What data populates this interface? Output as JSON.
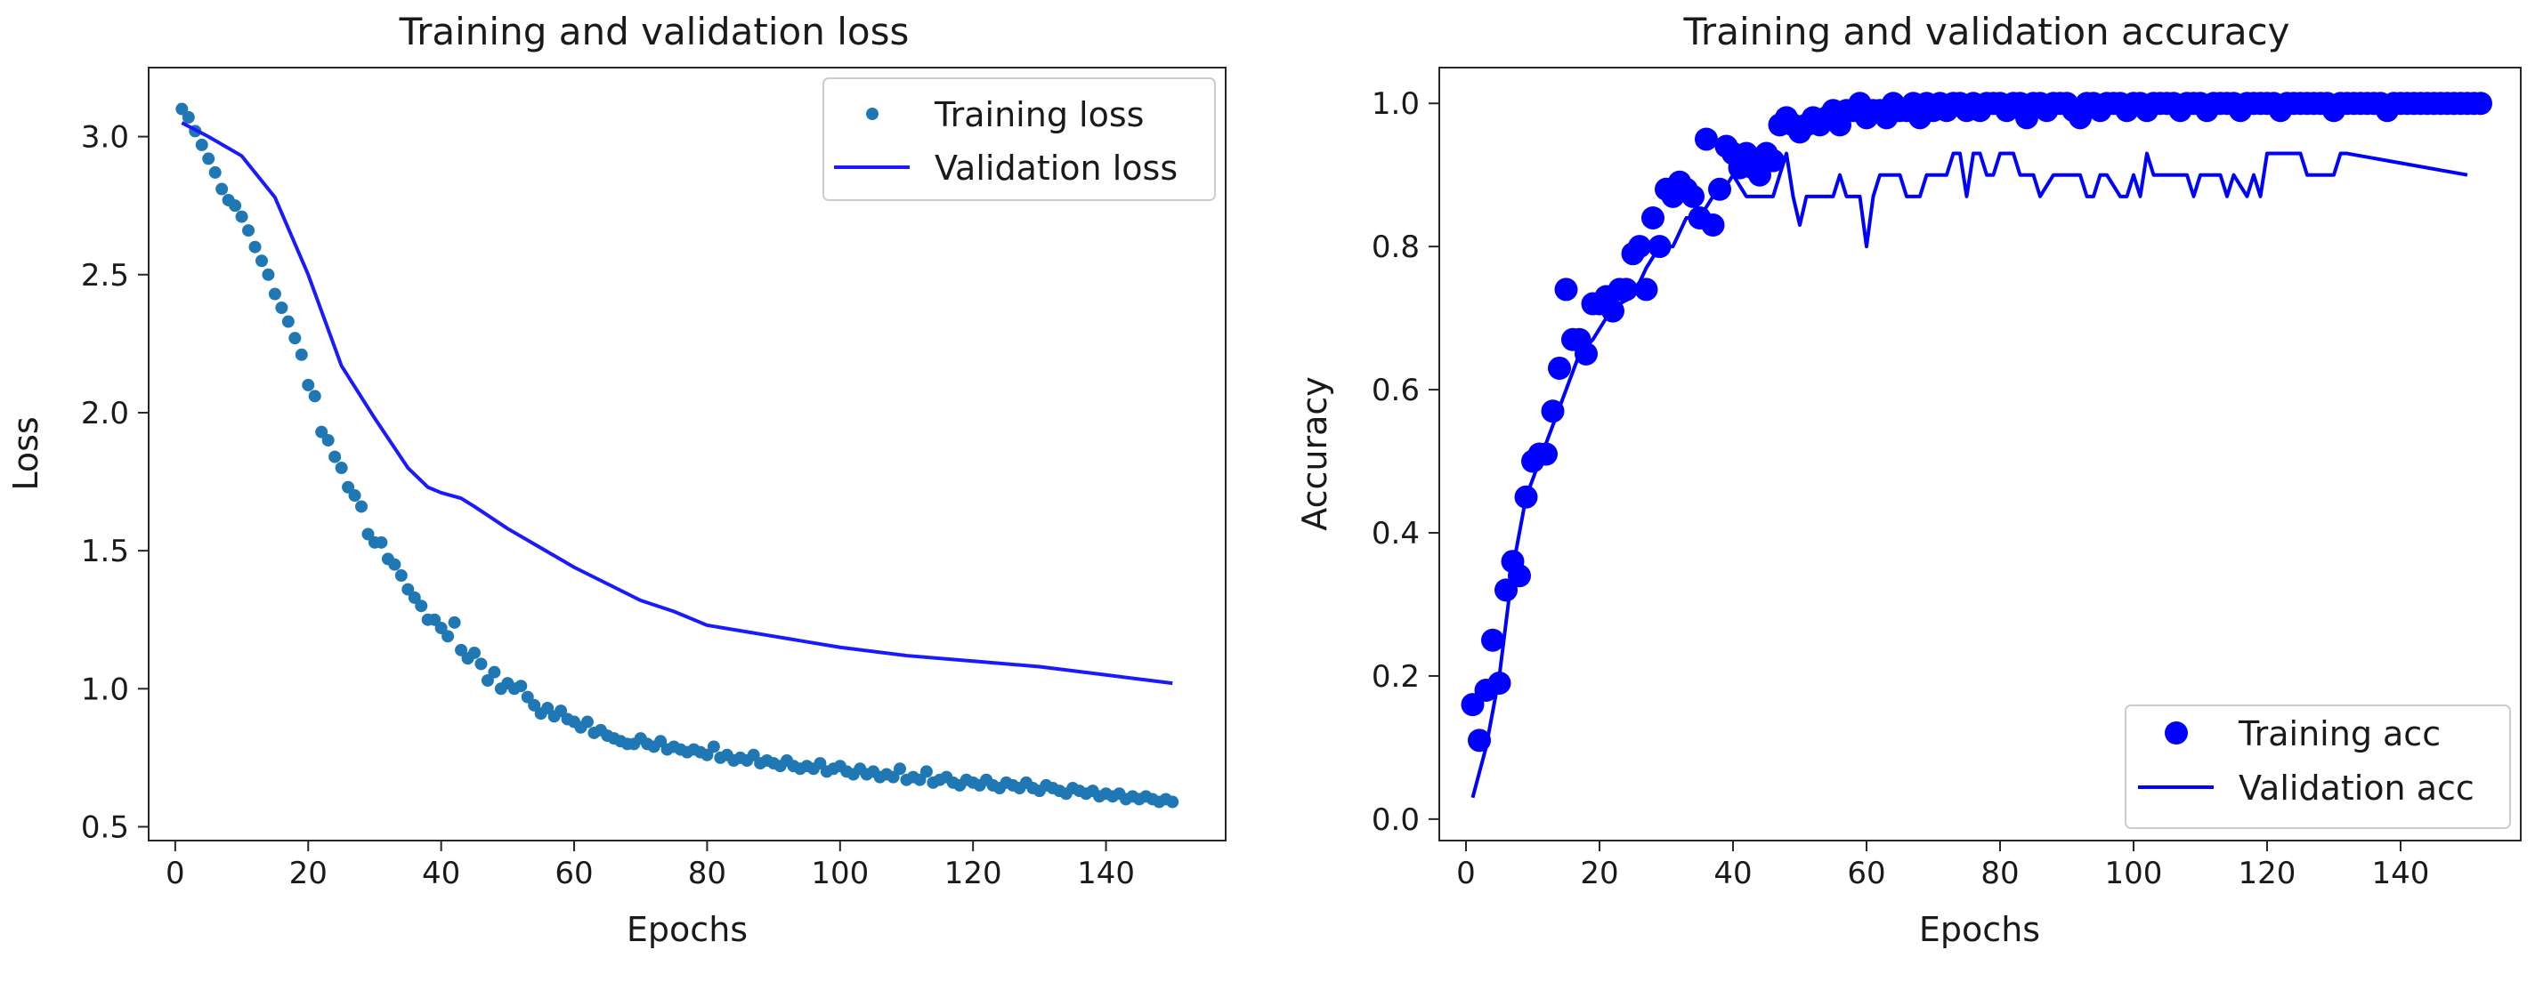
{
  "colors": {
    "training_loss": "#1f77b4",
    "validation_loss": "#1a1aff",
    "training_acc": "#0000ff",
    "validation_acc": "#0000ff",
    "axes": "#262626",
    "legend_border": "#cccccc"
  },
  "chart_data": [
    {
      "type": "scatter",
      "title": "Training and validation loss",
      "xlabel": "Epochs",
      "ylabel": "Loss",
      "xlim": [
        -4,
        158
      ],
      "ylim": [
        0.45,
        3.25
      ],
      "xticks": [
        0,
        20,
        40,
        60,
        80,
        100,
        120,
        140
      ],
      "xtick_labels": [
        "0",
        "20",
        "40",
        "60",
        "80",
        "100",
        "120",
        "140"
      ],
      "yticks": [
        0.5,
        1.0,
        1.5,
        2.0,
        2.5,
        3.0
      ],
      "ytick_labels": [
        "0.5",
        "1.0",
        "1.5",
        "2.0",
        "2.5",
        "3.0"
      ],
      "legend_position": "top-right",
      "series": [
        {
          "name": "Training loss",
          "kind": "points",
          "x_start": 1,
          "values": [
            3.1,
            3.07,
            3.02,
            2.97,
            2.92,
            2.87,
            2.81,
            2.77,
            2.75,
            2.71,
            2.66,
            2.6,
            2.55,
            2.5,
            2.43,
            2.38,
            2.33,
            2.27,
            2.21,
            2.1,
            2.06,
            1.93,
            1.9,
            1.84,
            1.8,
            1.73,
            1.7,
            1.66,
            1.56,
            1.53,
            1.53,
            1.47,
            1.45,
            1.41,
            1.36,
            1.33,
            1.3,
            1.25,
            1.25,
            1.22,
            1.19,
            1.24,
            1.14,
            1.11,
            1.13,
            1.09,
            1.03,
            1.06,
            1.0,
            1.02,
            1.0,
            1.01,
            0.97,
            0.94,
            0.91,
            0.93,
            0.9,
            0.92,
            0.89,
            0.88,
            0.86,
            0.88,
            0.84,
            0.85,
            0.83,
            0.82,
            0.81,
            0.8,
            0.8,
            0.82,
            0.8,
            0.79,
            0.81,
            0.78,
            0.79,
            0.78,
            0.77,
            0.78,
            0.77,
            0.76,
            0.79,
            0.75,
            0.76,
            0.74,
            0.75,
            0.74,
            0.76,
            0.73,
            0.74,
            0.73,
            0.72,
            0.74,
            0.72,
            0.71,
            0.72,
            0.71,
            0.73,
            0.7,
            0.71,
            0.72,
            0.7,
            0.69,
            0.71,
            0.69,
            0.7,
            0.68,
            0.69,
            0.68,
            0.71,
            0.67,
            0.68,
            0.67,
            0.7,
            0.66,
            0.67,
            0.68,
            0.66,
            0.65,
            0.67,
            0.66,
            0.65,
            0.67,
            0.65,
            0.64,
            0.66,
            0.65,
            0.64,
            0.66,
            0.64,
            0.63,
            0.65,
            0.64,
            0.63,
            0.62,
            0.64,
            0.63,
            0.62,
            0.63,
            0.61,
            0.62,
            0.61,
            0.62,
            0.6,
            0.61,
            0.6,
            0.61,
            0.6,
            0.59,
            0.6,
            0.59
          ]
        },
        {
          "name": "Validation loss",
          "kind": "line",
          "x": [
            1,
            5,
            10,
            15,
            20,
            25,
            30,
            35,
            38,
            40,
            43,
            45,
            50,
            55,
            60,
            65,
            70,
            75,
            80,
            85,
            90,
            95,
            100,
            110,
            120,
            130,
            140,
            150
          ],
          "values": [
            3.05,
            3.0,
            2.93,
            2.78,
            2.5,
            2.17,
            1.98,
            1.8,
            1.73,
            1.71,
            1.69,
            1.66,
            1.58,
            1.51,
            1.44,
            1.38,
            1.32,
            1.28,
            1.23,
            1.21,
            1.19,
            1.17,
            1.15,
            1.12,
            1.1,
            1.08,
            1.05,
            1.02
          ]
        }
      ]
    },
    {
      "type": "scatter",
      "title": "Training and validation accuracy",
      "xlabel": "Epochs",
      "ylabel": "Accuracy",
      "xlim": [
        -4,
        158
      ],
      "ylim": [
        -0.03,
        1.05
      ],
      "xticks": [
        0,
        20,
        40,
        60,
        80,
        100,
        120,
        140
      ],
      "xtick_labels": [
        "0",
        "20",
        "40",
        "60",
        "80",
        "100",
        "120",
        "140"
      ],
      "yticks": [
        0.0,
        0.2,
        0.4,
        0.6,
        0.8,
        1.0
      ],
      "ytick_labels": [
        "0.0",
        "0.2",
        "0.4",
        "0.6",
        "0.8",
        "1.0"
      ],
      "legend_position": "bottom-right",
      "series": [
        {
          "name": "Training acc",
          "kind": "points",
          "x_start": 1,
          "values": [
            0.16,
            0.11,
            0.18,
            0.25,
            0.19,
            0.32,
            0.36,
            0.34,
            0.45,
            0.5,
            0.51,
            0.51,
            0.57,
            0.63,
            0.74,
            0.67,
            0.67,
            0.65,
            0.72,
            0.72,
            0.73,
            0.71,
            0.74,
            0.74,
            0.79,
            0.8,
            0.74,
            0.84,
            0.8,
            0.88,
            0.87,
            0.89,
            0.88,
            0.87,
            0.84,
            0.95,
            0.83,
            0.88,
            0.94,
            0.93,
            0.91,
            0.93,
            0.91,
            0.9,
            0.93,
            0.92,
            0.97,
            0.98,
            0.97,
            0.96,
            0.97,
            0.98,
            0.97,
            0.98,
            0.99,
            0.97,
            0.99,
            0.99,
            1.0,
            0.98,
            0.99,
            0.99,
            0.98,
            1.0,
            0.99,
            0.99,
            1.0,
            0.98,
            1.0,
            0.99,
            1.0,
            0.99,
            1.0,
            1.0,
            0.99,
            1.0,
            0.99,
            1.0,
            1.0,
            1.0,
            0.99,
            1.0,
            1.0,
            0.98,
            1.0,
            1.0,
            0.99,
            1.0,
            1.0,
            1.0,
            0.99,
            0.98,
            1.0,
            1.0,
            0.99,
            1.0,
            1.0,
            1.0,
            0.99,
            1.0,
            1.0,
            0.99,
            1.0,
            1.0,
            1.0,
            1.0,
            0.99,
            1.0,
            1.0,
            1.0,
            0.99,
            1.0,
            1.0,
            1.0,
            1.0,
            0.99,
            1.0,
            1.0,
            1.0,
            1.0,
            1.0,
            0.99,
            1.0,
            1.0,
            1.0,
            1.0,
            1.0,
            1.0,
            1.0,
            0.99,
            1.0,
            1.0,
            1.0,
            1.0,
            1.0,
            1.0,
            1.0,
            0.99,
            1.0,
            1.0,
            1.0,
            1.0,
            1.0,
            1.0,
            1.0,
            1.0,
            1.0,
            1.0,
            1.0,
            1.0,
            1.0,
            1.0
          ]
        },
        {
          "name": "Validation acc",
          "kind": "line",
          "x": [
            1,
            3,
            5,
            7,
            9,
            11,
            13,
            15,
            17,
            19,
            21,
            23,
            25,
            27,
            29,
            31,
            33,
            35,
            37,
            38,
            40,
            42,
            44,
            46,
            47,
            48,
            49,
            50,
            51,
            52,
            53,
            54,
            55,
            56,
            57,
            58,
            59,
            60,
            61,
            62,
            65,
            66,
            68,
            69,
            70,
            71,
            72,
            73,
            74,
            75,
            76,
            77,
            78,
            79,
            80,
            82,
            83,
            84,
            85,
            86,
            88,
            92,
            93,
            94,
            95,
            96,
            98,
            99,
            100,
            101,
            102,
            103,
            104,
            105,
            108,
            109,
            110,
            113,
            114,
            115,
            117,
            118,
            119,
            120,
            121,
            122,
            125,
            126,
            130,
            131,
            132,
            150
          ],
          "values": [
            0.03,
            0.1,
            0.2,
            0.35,
            0.45,
            0.5,
            0.55,
            0.6,
            0.65,
            0.67,
            0.7,
            0.72,
            0.73,
            0.77,
            0.8,
            0.8,
            0.84,
            0.84,
            0.87,
            0.87,
            0.9,
            0.87,
            0.87,
            0.87,
            0.9,
            0.93,
            0.87,
            0.83,
            0.87,
            0.87,
            0.87,
            0.87,
            0.87,
            0.9,
            0.87,
            0.87,
            0.87,
            0.8,
            0.87,
            0.9,
            0.9,
            0.87,
            0.87,
            0.9,
            0.9,
            0.9,
            0.9,
            0.93,
            0.93,
            0.87,
            0.93,
            0.93,
            0.9,
            0.9,
            0.93,
            0.93,
            0.9,
            0.9,
            0.9,
            0.87,
            0.9,
            0.9,
            0.87,
            0.87,
            0.9,
            0.9,
            0.87,
            0.87,
            0.9,
            0.87,
            0.93,
            0.9,
            0.9,
            0.9,
            0.9,
            0.87,
            0.9,
            0.9,
            0.87,
            0.9,
            0.87,
            0.9,
            0.87,
            0.93,
            0.93,
            0.93,
            0.93,
            0.9,
            0.9,
            0.93,
            0.93,
            0.9
          ]
        }
      ]
    }
  ]
}
